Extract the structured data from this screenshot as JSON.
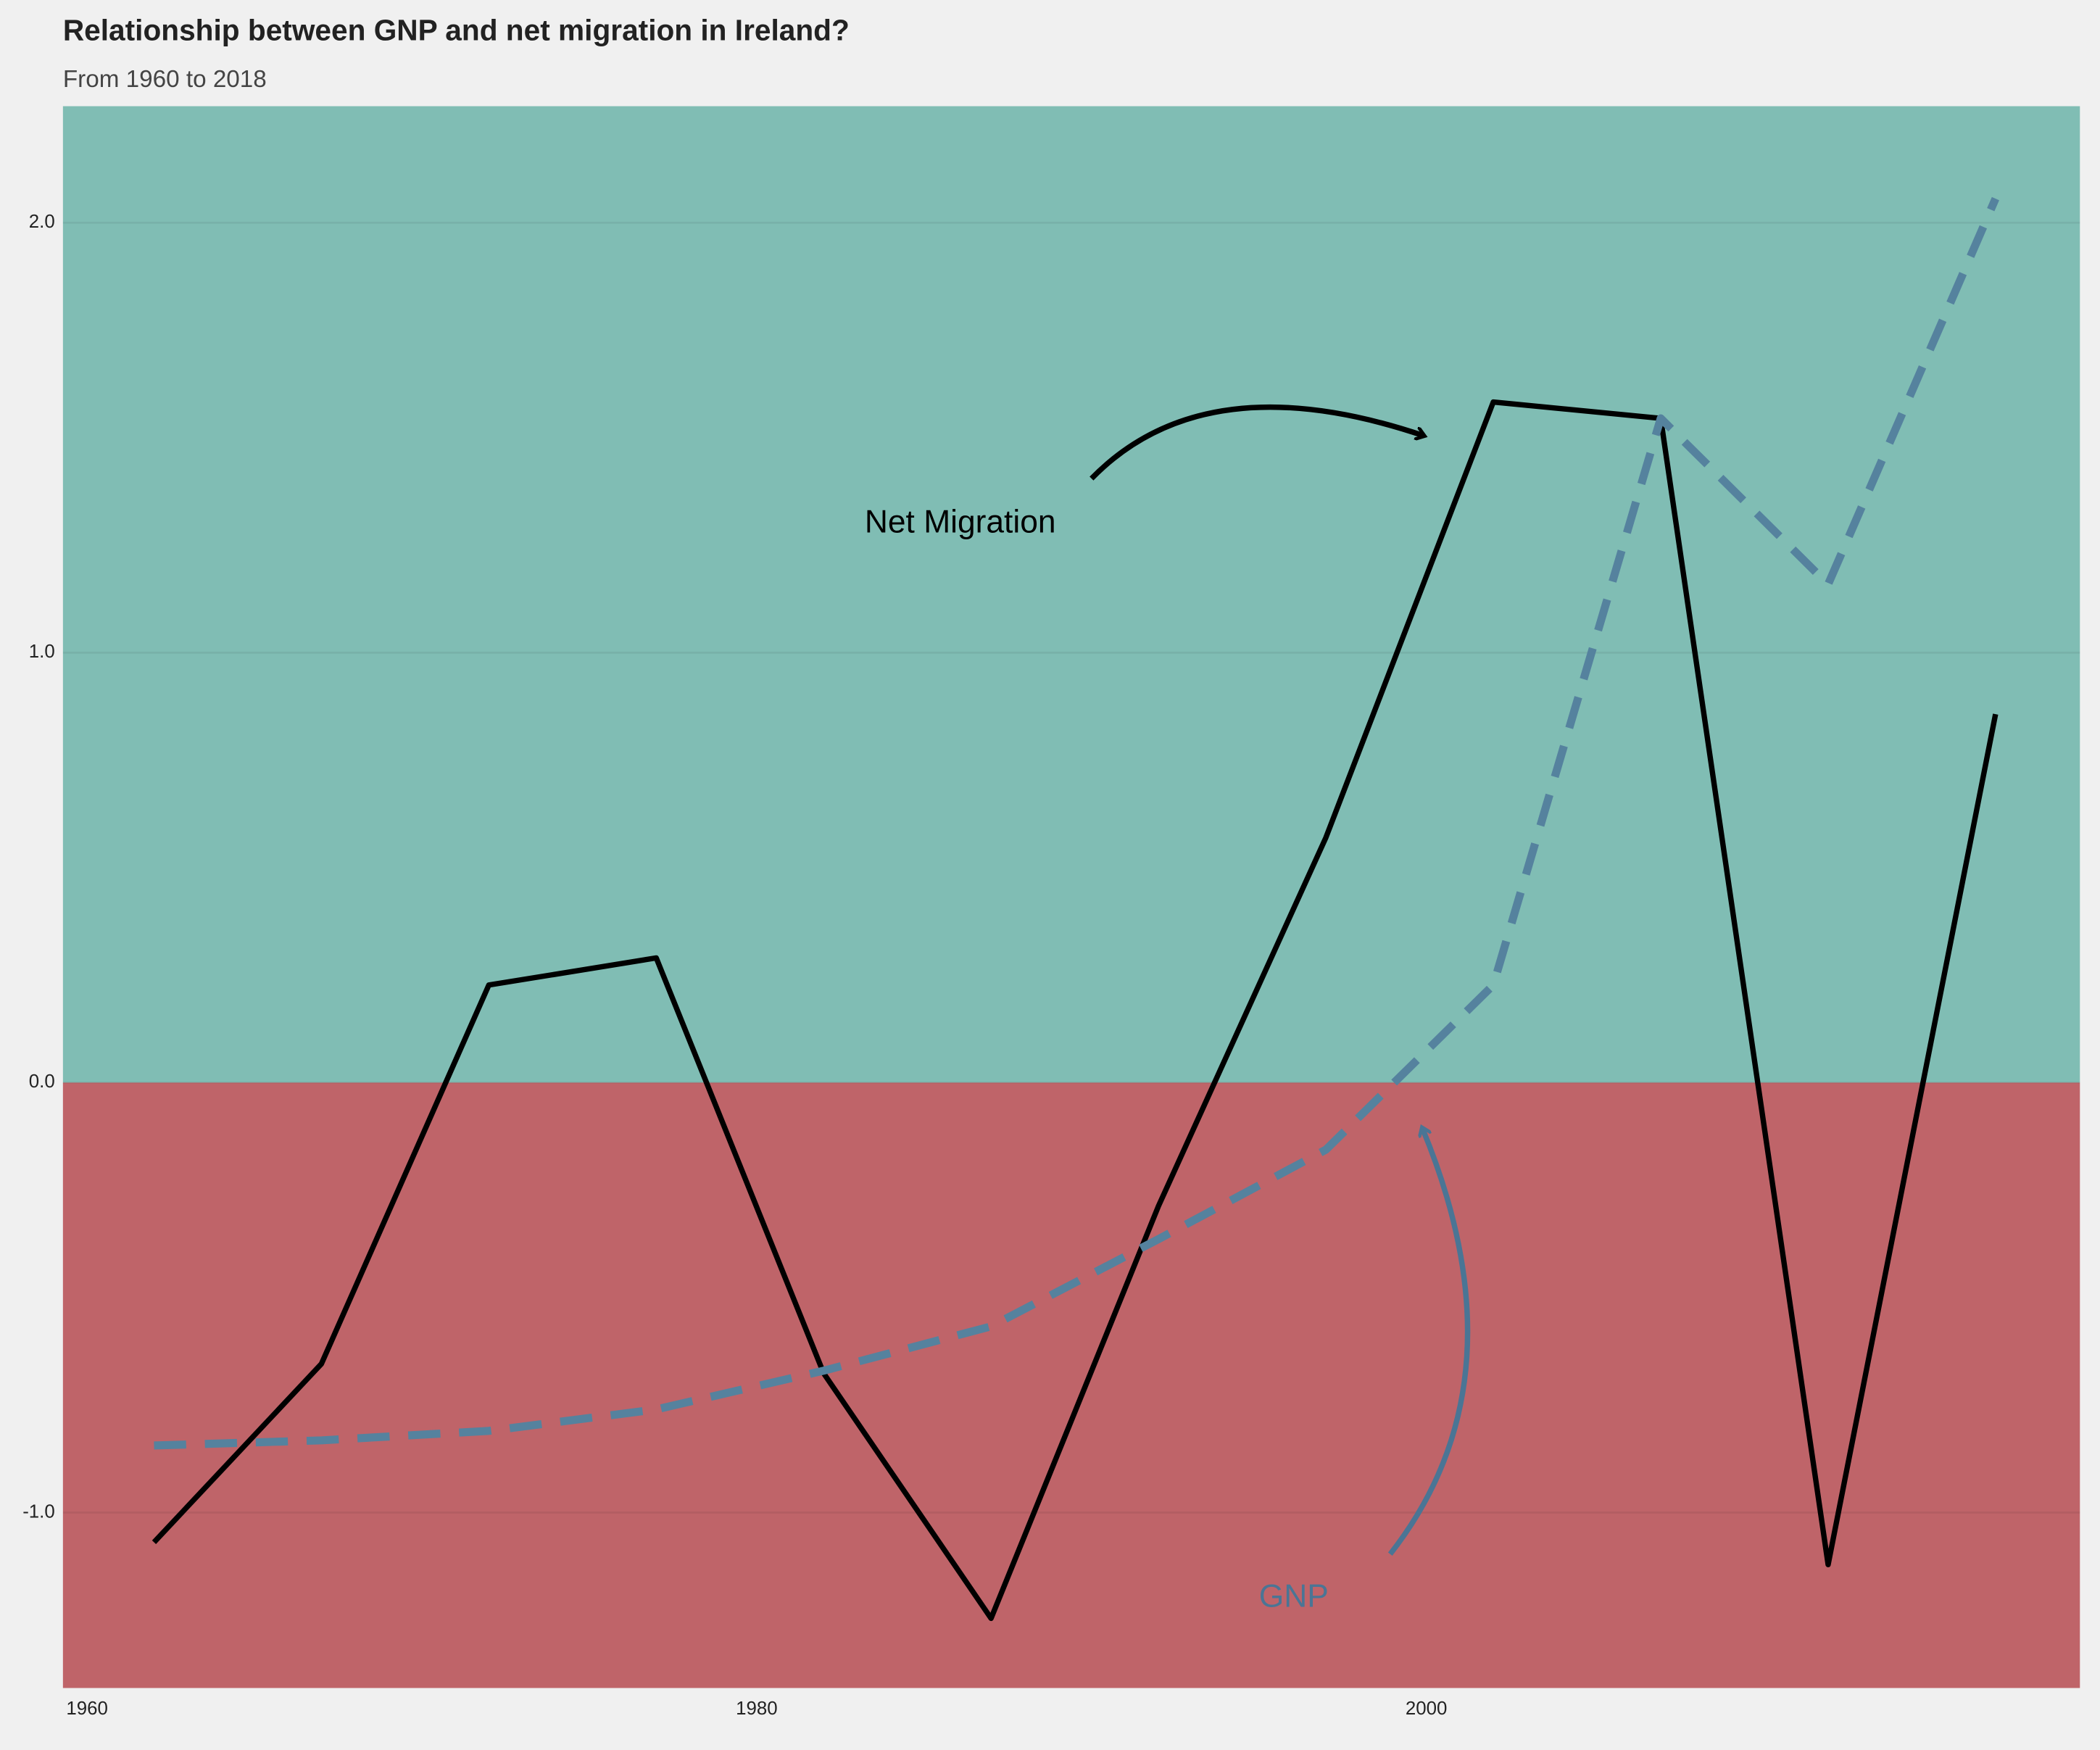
{
  "chart_data": {
    "type": "line",
    "title": "Relationship between GNP and net migration in Ireland?",
    "subtitle": "From 1960 to 2018",
    "x": [
      1962,
      1967,
      1972,
      1977,
      1982,
      1987,
      1992,
      1997,
      2002,
      2007,
      2012,
      2017
    ],
    "series": [
      {
        "name": "Net Migration",
        "color": "#000000",
        "dashed": false,
        "values": [
          -1.069,
          -0.654,
          0.227,
          0.29,
          -0.676,
          -1.246,
          -0.287,
          0.57,
          1.583,
          1.545,
          -1.121,
          0.857
        ]
      },
      {
        "name": "GNP",
        "color": "#55829e",
        "dashed": true,
        "values": [
          -0.844,
          -0.832,
          -0.81,
          -0.76,
          -0.67,
          -0.567,
          -0.364,
          -0.156,
          0.227,
          1.545,
          1.159,
          2.056
        ]
      }
    ],
    "annotations": [
      "Net Migration",
      "GNP"
    ],
    "xlim": [
      1959.28,
      2019.52
    ],
    "xticks": [
      1960,
      1980,
      2000
    ],
    "ylim": [
      -1.408,
      2.271
    ],
    "yticks": [
      {
        "value": -1,
        "label": "-1.0"
      },
      {
        "value": 0,
        "label": "0.0"
      },
      {
        "value": 1,
        "label": "1.0"
      },
      {
        "value": 2,
        "label": "2.0"
      }
    ],
    "band_colors": [
      "#80bdb4",
      "#bf6469"
    ],
    "grid": true
  }
}
